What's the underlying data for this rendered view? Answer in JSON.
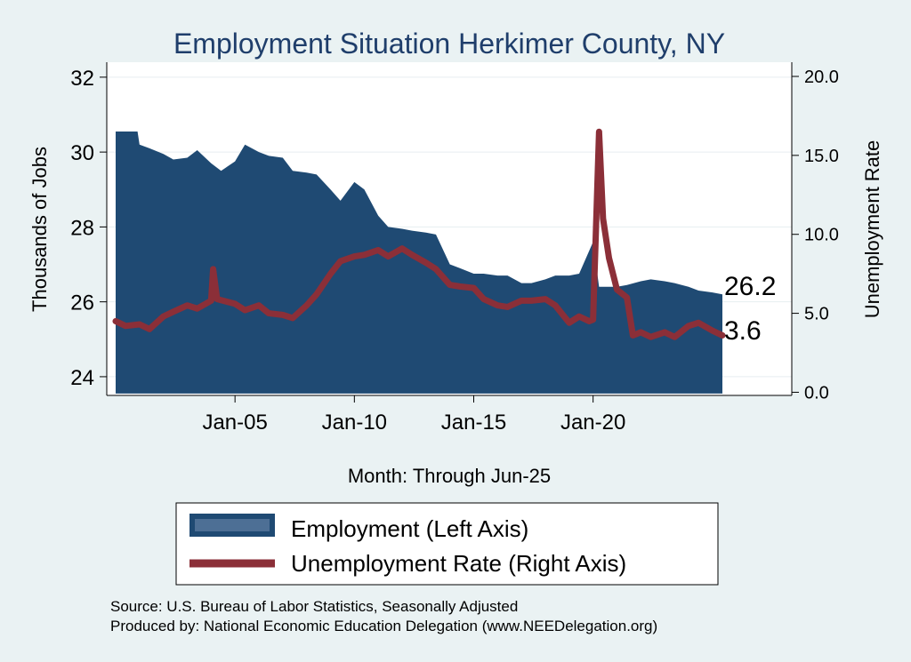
{
  "chart_data": {
    "type": "area",
    "title": "Employment Situation Herkimer  County, NY",
    "xlabel": "Month: Through Jun-25",
    "ylabel_left": "Thousands of Jobs",
    "ylabel_right": "Unemployment Rate",
    "x_ticks": [
      "Jan-05",
      "Jan-10",
      "Jan-15",
      "Jan-20"
    ],
    "y_left_ticks": [
      "24",
      "26",
      "28",
      "30",
      "32"
    ],
    "y_right_ticks": [
      "0.0",
      "5.0",
      "10.0",
      "15.0",
      "20.0"
    ],
    "ylim_left": [
      23.5,
      32.4
    ],
    "ylim_right": [
      -0.2,
      20.9
    ],
    "xlim": [
      "Jan-00",
      "Jun-25"
    ],
    "grid": true,
    "legend_position": "bottom",
    "colors": {
      "employment": "#1f4a73",
      "unemployment": "#8b2f38",
      "background": "#eaf2f3",
      "plot": "#ffffff"
    },
    "series": [
      {
        "name": "Employment (Left Axis)",
        "axis": "left",
        "points": [
          [
            "Jan-00",
            30.55
          ],
          [
            "Dec-00",
            30.55
          ],
          [
            "Jan-01",
            30.2
          ],
          [
            "Jun-01",
            30.1
          ],
          [
            "Jan-02",
            29.95
          ],
          [
            "Jun-02",
            29.8
          ],
          [
            "Jan-03",
            29.85
          ],
          [
            "Jun-03",
            30.05
          ],
          [
            "Jan-04",
            29.7
          ],
          [
            "Jun-04",
            29.5
          ],
          [
            "Jan-05",
            29.75
          ],
          [
            "Jun-05",
            30.2
          ],
          [
            "Jan-06",
            30.0
          ],
          [
            "Jun-06",
            29.9
          ],
          [
            "Jan-07",
            29.85
          ],
          [
            "Jun-07",
            29.5
          ],
          [
            "Jan-08",
            29.45
          ],
          [
            "Jun-08",
            29.4
          ],
          [
            "Jan-09",
            29.0
          ],
          [
            "Jun-09",
            28.7
          ],
          [
            "Jan-10",
            29.2
          ],
          [
            "Jun-10",
            29.0
          ],
          [
            "Jan-11",
            28.3
          ],
          [
            "Jun-11",
            28.0
          ],
          [
            "Jan-12",
            27.95
          ],
          [
            "Jun-12",
            27.9
          ],
          [
            "Jan-13",
            27.85
          ],
          [
            "Jun-13",
            27.8
          ],
          [
            "Jan-14",
            27.0
          ],
          [
            "Jun-14",
            26.9
          ],
          [
            "Jan-15",
            26.75
          ],
          [
            "Jun-15",
            26.75
          ],
          [
            "Jan-16",
            26.7
          ],
          [
            "Jun-16",
            26.7
          ],
          [
            "Jan-17",
            26.5
          ],
          [
            "Jun-17",
            26.5
          ],
          [
            "Jan-18",
            26.6
          ],
          [
            "Jun-18",
            26.7
          ],
          [
            "Jan-19",
            26.7
          ],
          [
            "Jun-19",
            26.75
          ],
          [
            "Jan-20",
            27.6
          ],
          [
            "Apr-20",
            26.4
          ],
          [
            "Jun-20",
            26.4
          ],
          [
            "Jan-21",
            26.4
          ],
          [
            "Jun-21",
            26.45
          ],
          [
            "Jan-22",
            26.55
          ],
          [
            "Jun-22",
            26.6
          ],
          [
            "Jan-23",
            26.55
          ],
          [
            "Jun-23",
            26.5
          ],
          [
            "Jan-24",
            26.4
          ],
          [
            "Jun-24",
            26.3
          ],
          [
            "Jan-25",
            26.25
          ],
          [
            "Jun-25",
            26.2
          ]
        ]
      },
      {
        "name": "Unemployment Rate (Right Axis)",
        "axis": "right",
        "points": [
          [
            "Jan-00",
            4.5
          ],
          [
            "Jun-00",
            4.2
          ],
          [
            "Jan-01",
            4.3
          ],
          [
            "Jun-01",
            4.0
          ],
          [
            "Jan-02",
            4.8
          ],
          [
            "Jun-02",
            5.1
          ],
          [
            "Jan-03",
            5.5
          ],
          [
            "Jun-03",
            5.3
          ],
          [
            "Jan-04",
            5.8
          ],
          [
            "Feb-04",
            7.8
          ],
          [
            "Apr-04",
            5.9
          ],
          [
            "Jan-05",
            5.6
          ],
          [
            "Jun-05",
            5.2
          ],
          [
            "Jan-06",
            5.5
          ],
          [
            "Jun-06",
            5.0
          ],
          [
            "Jan-07",
            4.9
          ],
          [
            "Jun-07",
            4.7
          ],
          [
            "Jan-08",
            5.5
          ],
          [
            "Jun-08",
            6.2
          ],
          [
            "Jan-09",
            7.5
          ],
          [
            "Jun-09",
            8.3
          ],
          [
            "Jan-10",
            8.6
          ],
          [
            "Jun-10",
            8.7
          ],
          [
            "Jan-11",
            9.0
          ],
          [
            "Jun-11",
            8.6
          ],
          [
            "Jan-12",
            9.1
          ],
          [
            "Jun-12",
            8.7
          ],
          [
            "Jan-13",
            8.2
          ],
          [
            "Jun-13",
            7.8
          ],
          [
            "Jan-14",
            6.8
          ],
          [
            "Jun-14",
            6.7
          ],
          [
            "Jan-15",
            6.6
          ],
          [
            "Jun-15",
            5.9
          ],
          [
            "Jan-16",
            5.5
          ],
          [
            "Jun-16",
            5.4
          ],
          [
            "Jan-17",
            5.8
          ],
          [
            "Jun-17",
            5.8
          ],
          [
            "Jan-18",
            5.9
          ],
          [
            "Jun-18",
            5.5
          ],
          [
            "Jan-19",
            4.4
          ],
          [
            "Jun-19",
            4.8
          ],
          [
            "Nov-19",
            4.5
          ],
          [
            "Jan-20",
            4.6
          ],
          [
            "Apr-20",
            16.5
          ],
          [
            "Jun-20",
            11.0
          ],
          [
            "Sep-20",
            8.5
          ],
          [
            "Jan-21",
            6.5
          ],
          [
            "Jun-21",
            6.0
          ],
          [
            "Sep-21",
            3.6
          ],
          [
            "Jan-22",
            3.8
          ],
          [
            "Jun-22",
            3.5
          ],
          [
            "Jan-23",
            3.8
          ],
          [
            "Jun-23",
            3.5
          ],
          [
            "Jan-24",
            4.2
          ],
          [
            "Jun-24",
            4.4
          ],
          [
            "Jan-25",
            3.9
          ],
          [
            "Jun-25",
            3.6
          ]
        ]
      }
    ],
    "end_labels": {
      "employment": "26.2",
      "unemployment": "3.6"
    }
  },
  "legend": [
    {
      "label": "Employment (Left Axis)"
    },
    {
      "label": "Unemployment Rate (Right Axis)"
    }
  ],
  "notes": {
    "source": "Source: U.S. Bureau of Labor Statistics, Seasonally Adjusted",
    "producer": "Produced by: National Economic Education Delegation (www.NEEDelegation.org)"
  }
}
